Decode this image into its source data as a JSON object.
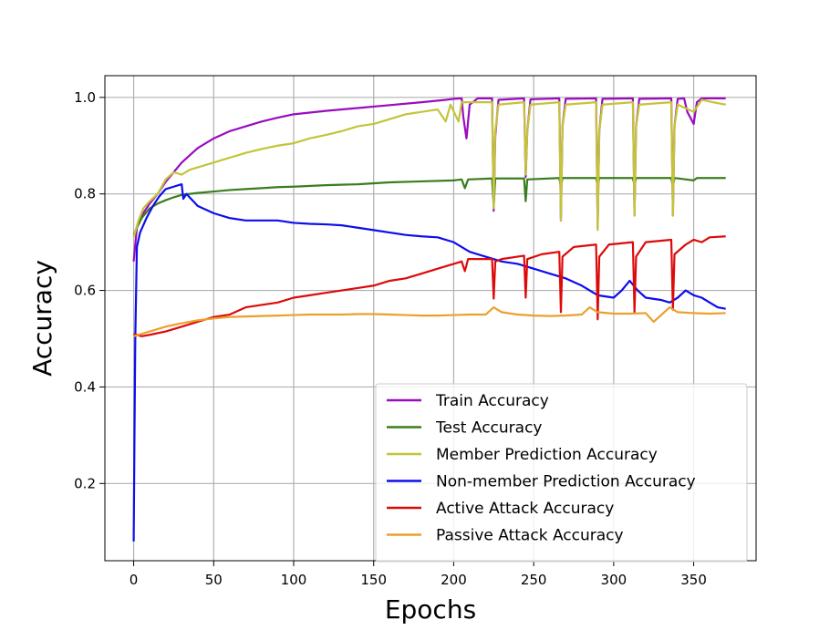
{
  "chart_data": {
    "type": "line",
    "title": "",
    "xlabel": "Epochs",
    "ylabel": "Accuracy",
    "xlim": [
      -18,
      389
    ],
    "ylim": [
      0.04,
      1.045
    ],
    "xticks": [
      0,
      50,
      100,
      150,
      200,
      250,
      300,
      350
    ],
    "yticks": [
      0.2,
      0.4,
      0.6,
      0.8,
      1.0
    ],
    "ytick_labels": [
      "0.2",
      "0.4",
      "0.6",
      "0.8",
      "1.0"
    ],
    "grid": true,
    "legend_position": "lower-right",
    "series": [
      {
        "name": "Train Accuracy",
        "color": "#9a0cbf",
        "points": [
          [
            0,
            0.66
          ],
          [
            2,
            0.73
          ],
          [
            5,
            0.755
          ],
          [
            10,
            0.78
          ],
          [
            15,
            0.8
          ],
          [
            20,
            0.825
          ],
          [
            25,
            0.845
          ],
          [
            30,
            0.865
          ],
          [
            40,
            0.895
          ],
          [
            50,
            0.915
          ],
          [
            60,
            0.93
          ],
          [
            70,
            0.94
          ],
          [
            80,
            0.95
          ],
          [
            90,
            0.958
          ],
          [
            100,
            0.965
          ],
          [
            120,
            0.972
          ],
          [
            140,
            0.978
          ],
          [
            160,
            0.984
          ],
          [
            180,
            0.99
          ],
          [
            195,
            0.995
          ],
          [
            200,
            0.997
          ],
          [
            205,
            0.998
          ],
          [
            206,
            0.96
          ],
          [
            208,
            0.915
          ],
          [
            210,
            0.985
          ],
          [
            215,
            0.998
          ],
          [
            224,
            0.998
          ],
          [
            225,
            0.765
          ],
          [
            226,
            0.92
          ],
          [
            228,
            0.995
          ],
          [
            244,
            0.998
          ],
          [
            245,
            0.835
          ],
          [
            246,
            0.93
          ],
          [
            248,
            0.996
          ],
          [
            266,
            0.998
          ],
          [
            267,
            0.745
          ],
          [
            268,
            0.94
          ],
          [
            270,
            0.997
          ],
          [
            289,
            0.998
          ],
          [
            290,
            0.73
          ],
          [
            291,
            0.93
          ],
          [
            293,
            0.997
          ],
          [
            312,
            0.998
          ],
          [
            313,
            0.755
          ],
          [
            314,
            0.94
          ],
          [
            316,
            0.997
          ],
          [
            336,
            0.998
          ],
          [
            337,
            0.755
          ],
          [
            338,
            0.94
          ],
          [
            340,
            0.997
          ],
          [
            344,
            0.998
          ],
          [
            346,
            0.97
          ],
          [
            350,
            0.945
          ],
          [
            352,
            0.99
          ],
          [
            355,
            0.998
          ],
          [
            370,
            0.998
          ]
        ]
      },
      {
        "name": "Test Accuracy",
        "color": "#3a7d1e",
        "points": [
          [
            0,
            0.715
          ],
          [
            2,
            0.73
          ],
          [
            5,
            0.75
          ],
          [
            10,
            0.77
          ],
          [
            15,
            0.78
          ],
          [
            20,
            0.787
          ],
          [
            25,
            0.793
          ],
          [
            30,
            0.798
          ],
          [
            40,
            0.802
          ],
          [
            50,
            0.805
          ],
          [
            60,
            0.808
          ],
          [
            70,
            0.81
          ],
          [
            80,
            0.812
          ],
          [
            90,
            0.814
          ],
          [
            100,
            0.815
          ],
          [
            120,
            0.818
          ],
          [
            140,
            0.82
          ],
          [
            160,
            0.824
          ],
          [
            180,
            0.826
          ],
          [
            200,
            0.828
          ],
          [
            205,
            0.83
          ],
          [
            207,
            0.812
          ],
          [
            209,
            0.83
          ],
          [
            224,
            0.832
          ],
          [
            225,
            0.775
          ],
          [
            226,
            0.832
          ],
          [
            244,
            0.832
          ],
          [
            245,
            0.785
          ],
          [
            246,
            0.83
          ],
          [
            266,
            0.833
          ],
          [
            267,
            0.815
          ],
          [
            268,
            0.833
          ],
          [
            289,
            0.833
          ],
          [
            290,
            0.815
          ],
          [
            291,
            0.833
          ],
          [
            312,
            0.833
          ],
          [
            313,
            0.818
          ],
          [
            314,
            0.833
          ],
          [
            336,
            0.833
          ],
          [
            337,
            0.815
          ],
          [
            338,
            0.833
          ],
          [
            350,
            0.828
          ],
          [
            352,
            0.833
          ],
          [
            370,
            0.833
          ]
        ]
      },
      {
        "name": "Member Prediction Accuracy",
        "color": "#c4c43a",
        "points": [
          [
            0,
            0.71
          ],
          [
            3,
            0.745
          ],
          [
            6,
            0.77
          ],
          [
            10,
            0.785
          ],
          [
            15,
            0.8
          ],
          [
            20,
            0.83
          ],
          [
            25,
            0.845
          ],
          [
            30,
            0.84
          ],
          [
            35,
            0.85
          ],
          [
            40,
            0.855
          ],
          [
            50,
            0.865
          ],
          [
            60,
            0.875
          ],
          [
            70,
            0.885
          ],
          [
            80,
            0.893
          ],
          [
            90,
            0.9
          ],
          [
            100,
            0.905
          ],
          [
            110,
            0.915
          ],
          [
            120,
            0.922
          ],
          [
            130,
            0.93
          ],
          [
            140,
            0.94
          ],
          [
            150,
            0.945
          ],
          [
            160,
            0.955
          ],
          [
            170,
            0.965
          ],
          [
            180,
            0.97
          ],
          [
            190,
            0.975
          ],
          [
            195,
            0.95
          ],
          [
            198,
            0.985
          ],
          [
            203,
            0.95
          ],
          [
            205,
            0.99
          ],
          [
            215,
            0.99
          ],
          [
            224,
            0.99
          ],
          [
            225,
            0.77
          ],
          [
            226,
            0.93
          ],
          [
            228,
            0.985
          ],
          [
            244,
            0.99
          ],
          [
            245,
            0.84
          ],
          [
            246,
            0.93
          ],
          [
            248,
            0.985
          ],
          [
            266,
            0.99
          ],
          [
            267,
            0.745
          ],
          [
            268,
            0.94
          ],
          [
            270,
            0.985
          ],
          [
            289,
            0.99
          ],
          [
            290,
            0.725
          ],
          [
            291,
            0.93
          ],
          [
            293,
            0.985
          ],
          [
            312,
            0.99
          ],
          [
            313,
            0.755
          ],
          [
            314,
            0.94
          ],
          [
            316,
            0.985
          ],
          [
            336,
            0.99
          ],
          [
            337,
            0.755
          ],
          [
            338,
            0.94
          ],
          [
            340,
            0.985
          ],
          [
            350,
            0.97
          ],
          [
            355,
            0.995
          ],
          [
            362,
            0.99
          ],
          [
            370,
            0.985
          ]
        ]
      },
      {
        "name": "Non-member Prediction Accuracy",
        "color": "#0d0ded",
        "points": [
          [
            0,
            0.08
          ],
          [
            0.5,
            0.3
          ],
          [
            1,
            0.5
          ],
          [
            2,
            0.69
          ],
          [
            4,
            0.72
          ],
          [
            8,
            0.75
          ],
          [
            12,
            0.775
          ],
          [
            16,
            0.795
          ],
          [
            20,
            0.81
          ],
          [
            25,
            0.815
          ],
          [
            30,
            0.82
          ],
          [
            31,
            0.79
          ],
          [
            33,
            0.8
          ],
          [
            40,
            0.775
          ],
          [
            50,
            0.76
          ],
          [
            60,
            0.75
          ],
          [
            70,
            0.745
          ],
          [
            80,
            0.745
          ],
          [
            90,
            0.745
          ],
          [
            100,
            0.74
          ],
          [
            110,
            0.738
          ],
          [
            120,
            0.737
          ],
          [
            130,
            0.735
          ],
          [
            140,
            0.73
          ],
          [
            150,
            0.725
          ],
          [
            160,
            0.72
          ],
          [
            170,
            0.715
          ],
          [
            180,
            0.712
          ],
          [
            190,
            0.71
          ],
          [
            200,
            0.7
          ],
          [
            205,
            0.69
          ],
          [
            210,
            0.68
          ],
          [
            220,
            0.67
          ],
          [
            230,
            0.66
          ],
          [
            240,
            0.655
          ],
          [
            250,
            0.645
          ],
          [
            260,
            0.635
          ],
          [
            270,
            0.625
          ],
          [
            280,
            0.61
          ],
          [
            290,
            0.59
          ],
          [
            300,
            0.585
          ],
          [
            305,
            0.6
          ],
          [
            310,
            0.62
          ],
          [
            315,
            0.6
          ],
          [
            320,
            0.585
          ],
          [
            330,
            0.58
          ],
          [
            335,
            0.575
          ],
          [
            340,
            0.585
          ],
          [
            345,
            0.6
          ],
          [
            350,
            0.59
          ],
          [
            355,
            0.585
          ],
          [
            360,
            0.575
          ],
          [
            365,
            0.565
          ],
          [
            370,
            0.562
          ]
        ]
      },
      {
        "name": "Active Attack Accuracy",
        "color": "#dd0a0a",
        "points": [
          [
            0,
            0.51
          ],
          [
            5,
            0.505
          ],
          [
            10,
            0.508
          ],
          [
            20,
            0.515
          ],
          [
            30,
            0.525
          ],
          [
            40,
            0.535
          ],
          [
            50,
            0.545
          ],
          [
            60,
            0.55
          ],
          [
            70,
            0.565
          ],
          [
            80,
            0.57
          ],
          [
            90,
            0.575
          ],
          [
            100,
            0.585
          ],
          [
            110,
            0.59
          ],
          [
            120,
            0.595
          ],
          [
            130,
            0.6
          ],
          [
            140,
            0.605
          ],
          [
            150,
            0.61
          ],
          [
            160,
            0.62
          ],
          [
            170,
            0.625
          ],
          [
            180,
            0.635
          ],
          [
            190,
            0.645
          ],
          [
            200,
            0.655
          ],
          [
            205,
            0.66
          ],
          [
            207,
            0.64
          ],
          [
            209,
            0.665
          ],
          [
            215,
            0.665
          ],
          [
            224,
            0.665
          ],
          [
            225,
            0.583
          ],
          [
            226,
            0.66
          ],
          [
            230,
            0.665
          ],
          [
            244,
            0.672
          ],
          [
            245,
            0.585
          ],
          [
            246,
            0.665
          ],
          [
            255,
            0.675
          ],
          [
            266,
            0.68
          ],
          [
            267,
            0.555
          ],
          [
            268,
            0.67
          ],
          [
            275,
            0.69
          ],
          [
            289,
            0.695
          ],
          [
            290,
            0.54
          ],
          [
            291,
            0.67
          ],
          [
            297,
            0.695
          ],
          [
            312,
            0.7
          ],
          [
            313,
            0.555
          ],
          [
            314,
            0.67
          ],
          [
            320,
            0.7
          ],
          [
            336,
            0.705
          ],
          [
            337,
            0.56
          ],
          [
            338,
            0.675
          ],
          [
            345,
            0.695
          ],
          [
            350,
            0.705
          ],
          [
            355,
            0.7
          ],
          [
            360,
            0.71
          ],
          [
            370,
            0.712
          ]
        ]
      },
      {
        "name": "Passive Attack Accuracy",
        "color": "#eba02d",
        "points": [
          [
            0,
            0.505
          ],
          [
            5,
            0.51
          ],
          [
            10,
            0.515
          ],
          [
            20,
            0.525
          ],
          [
            30,
            0.532
          ],
          [
            40,
            0.538
          ],
          [
            50,
            0.542
          ],
          [
            60,
            0.545
          ],
          [
            70,
            0.546
          ],
          [
            80,
            0.547
          ],
          [
            90,
            0.548
          ],
          [
            100,
            0.549
          ],
          [
            110,
            0.55
          ],
          [
            120,
            0.55
          ],
          [
            130,
            0.55
          ],
          [
            140,
            0.551
          ],
          [
            150,
            0.551
          ],
          [
            160,
            0.55
          ],
          [
            170,
            0.549
          ],
          [
            180,
            0.548
          ],
          [
            190,
            0.548
          ],
          [
            200,
            0.549
          ],
          [
            210,
            0.55
          ],
          [
            220,
            0.55
          ],
          [
            225,
            0.565
          ],
          [
            230,
            0.555
          ],
          [
            240,
            0.55
          ],
          [
            250,
            0.548
          ],
          [
            260,
            0.547
          ],
          [
            270,
            0.548
          ],
          [
            280,
            0.55
          ],
          [
            285,
            0.565
          ],
          [
            290,
            0.555
          ],
          [
            300,
            0.552
          ],
          [
            310,
            0.552
          ],
          [
            320,
            0.553
          ],
          [
            325,
            0.535
          ],
          [
            330,
            0.55
          ],
          [
            335,
            0.565
          ],
          [
            340,
            0.555
          ],
          [
            350,
            0.553
          ],
          [
            360,
            0.552
          ],
          [
            370,
            0.553
          ]
        ]
      }
    ]
  }
}
